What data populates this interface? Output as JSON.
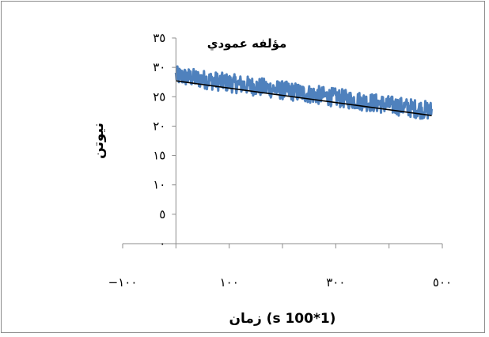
{
  "chart_data": {
    "type": "scatter",
    "title": "مؤلفه عمودي",
    "xlabel": "زمان (s 100*1)",
    "ylabel": "نيوتن",
    "xlim": [
      -100,
      500
    ],
    "ylim": [
      0,
      35
    ],
    "x_ticks": [
      -100,
      100,
      300,
      500
    ],
    "x_tick_labels": [
      "−١٠٠",
      "١٠٠",
      "٣٠٠",
      "٥٠٠"
    ],
    "y_ticks": [
      0,
      5,
      10,
      15,
      20,
      25,
      30,
      35
    ],
    "y_tick_labels": [
      "٠",
      "٥",
      "١٠",
      "١٥",
      "٢٠",
      "٢٥",
      "٣٠",
      "٣٥"
    ],
    "grid": false,
    "legend": "none",
    "series": [
      {
        "kind": "noisy-line",
        "color": "#4f81bd",
        "x_start": 0,
        "x_end": 480,
        "y_start": 28.6,
        "y_end": 22.6,
        "noise_amplitude": 1.6
      },
      {
        "kind": "trendline",
        "color": "#000000",
        "x": [
          0,
          480
        ],
        "y": [
          27.7,
          21.8
        ]
      }
    ]
  }
}
